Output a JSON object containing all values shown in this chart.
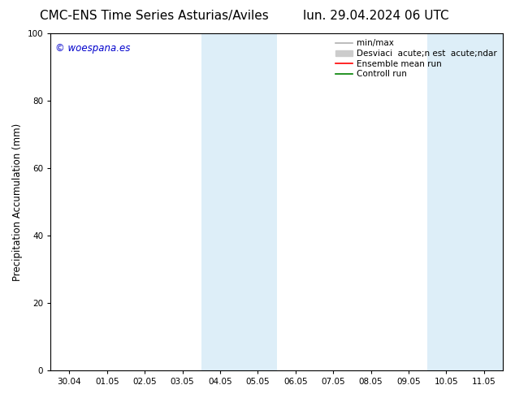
{
  "title_left": "CMC-ENS Time Series Asturias/Aviles",
  "title_right": "lun. 29.04.2024 06 UTC",
  "ylabel": "Precipitation Accumulation (mm)",
  "ylim": [
    0,
    100
  ],
  "yticks": [
    0,
    20,
    40,
    60,
    80,
    100
  ],
  "xtick_labels": [
    "30.04",
    "01.05",
    "02.05",
    "03.05",
    "04.05",
    "05.05",
    "06.05",
    "07.05",
    "08.05",
    "09.05",
    "10.05",
    "11.05"
  ],
  "watermark": "© woespana.es",
  "watermark_color": "#0000cc",
  "background_color": "#ffffff",
  "plot_background": "#ffffff",
  "shaded_color": "#ddeef8",
  "shaded_regions": [
    {
      "xstart": 3.5,
      "xend": 5.5
    },
    {
      "xstart": 9.5,
      "xend": 11.5
    }
  ],
  "legend_entries": [
    {
      "label": "min/max",
      "color": "#b0b0b0",
      "lw": 1.2,
      "type": "line"
    },
    {
      "label": "Desviaci  acute;n est  acute;ndar",
      "color": "#cccccc",
      "lw": 5,
      "type": "patch"
    },
    {
      "label": "Ensemble mean run",
      "color": "#ff0000",
      "lw": 1.2,
      "type": "line"
    },
    {
      "label": "Controll run",
      "color": "#008000",
      "lw": 1.2,
      "type": "line"
    }
  ],
  "title_fontsize": 11,
  "tick_fontsize": 7.5,
  "ylabel_fontsize": 8.5,
  "legend_fontsize": 7.5
}
